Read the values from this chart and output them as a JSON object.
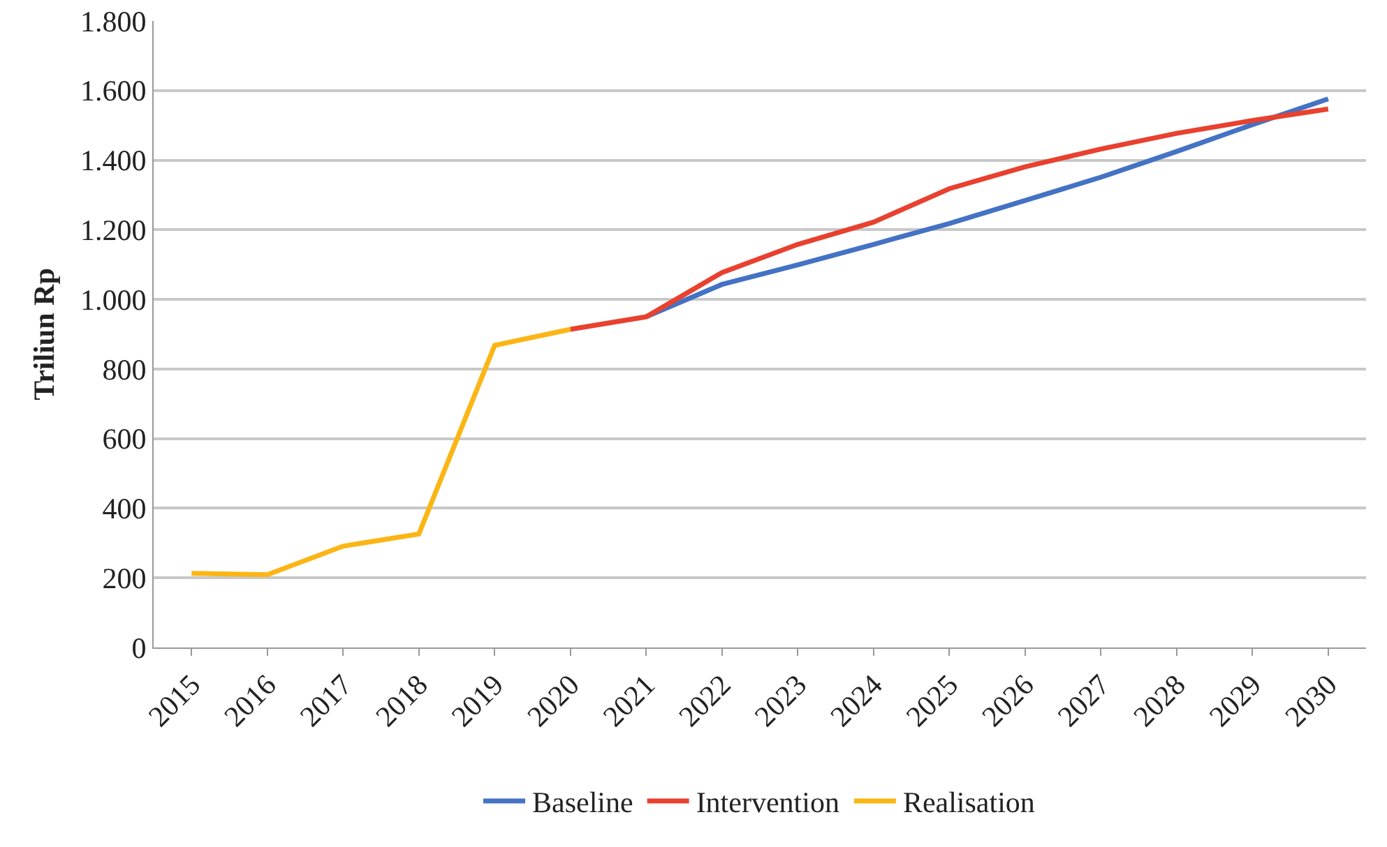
{
  "chart_data": {
    "type": "line",
    "ylabel": "Triliun Rp",
    "categories": [
      "2015",
      "2016",
      "2017",
      "2018",
      "2019",
      "2020",
      "2021",
      "2022",
      "2023",
      "2024",
      "2025",
      "2026",
      "2027",
      "2028",
      "2029",
      "2030"
    ],
    "series": [
      {
        "name": "Baseline",
        "color": "#4472c4",
        "values": [
          null,
          null,
          null,
          null,
          null,
          null,
          950,
          1043,
          1099,
          1158,
          1218,
          1284,
          1351,
          1425,
          1502,
          1576
        ]
      },
      {
        "name": "Intervention",
        "color": "#e8412f",
        "values": [
          null,
          null,
          null,
          null,
          null,
          914,
          950,
          1077,
          1158,
          1222,
          1318,
          1381,
          1432,
          1477,
          1514,
          1547
        ]
      },
      {
        "name": "Realisation",
        "color": "#fbb615",
        "values": [
          213,
          209,
          291,
          326,
          868,
          914,
          null,
          null,
          null,
          null,
          null,
          null,
          null,
          null,
          null,
          null
        ]
      }
    ],
    "ylim": [
      0,
      1800
    ],
    "yticks": [
      0,
      200,
      400,
      {
        "value": 600,
        "label": "600"
      },
      800,
      {
        "value": 1000,
        "label": "1.000"
      },
      {
        "value": 1200,
        "label": "1.200"
      },
      {
        "value": 1400,
        "label": "1.400"
      },
      {
        "value": 1600,
        "label": "1.600"
      },
      {
        "value": 1800,
        "label": "1.800"
      }
    ],
    "grid": "y",
    "legend": "bottom",
    "marker": "none",
    "line_style": "solid"
  }
}
